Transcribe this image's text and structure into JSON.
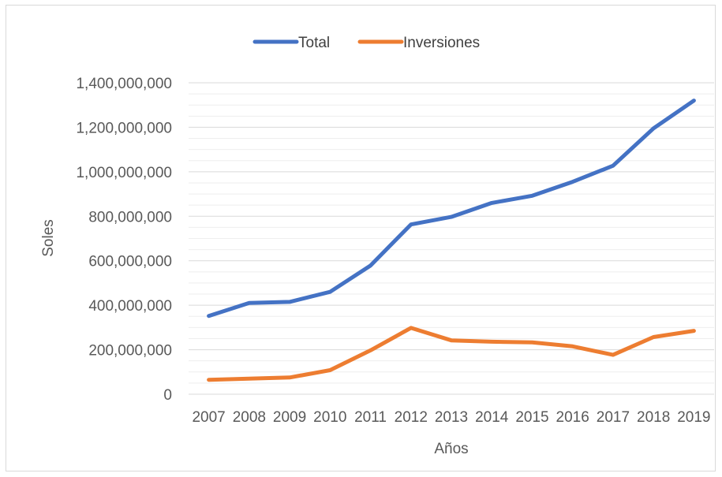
{
  "chart_data": {
    "type": "line",
    "x": [
      "2007",
      "2008",
      "2009",
      "2010",
      "2011",
      "2012",
      "2013",
      "2014",
      "2015",
      "2016",
      "2017",
      "2018",
      "2019"
    ],
    "series": [
      {
        "name": "Total",
        "color": "#4472C4",
        "values": [
          352000000,
          410000000,
          415000000,
          460000000,
          578000000,
          763000000,
          797000000,
          860000000,
          892000000,
          955000000,
          1027000000,
          1195000000,
          1320000000
        ]
      },
      {
        "name": "Inversiones",
        "color": "#ED7D31",
        "values": [
          65000000,
          70000000,
          75000000,
          108000000,
          197000000,
          298000000,
          242000000,
          236000000,
          233000000,
          215000000,
          177000000,
          257000000,
          285000000
        ]
      }
    ],
    "xlabel": "Años",
    "ylabel": "Soles",
    "ylim": [
      0,
      1400000000
    ],
    "y_ticks": [
      "0",
      "200,000,000",
      "400,000,000",
      "600,000,000",
      "800,000,000",
      "1,000,000,000",
      "1,200,000,000",
      "1,400,000,000"
    ],
    "y_tick_values": [
      0,
      200000000,
      400000000,
      600000000,
      800000000,
      1000000000,
      1200000000,
      1400000000
    ],
    "grid": true,
    "legend_position": "top"
  }
}
